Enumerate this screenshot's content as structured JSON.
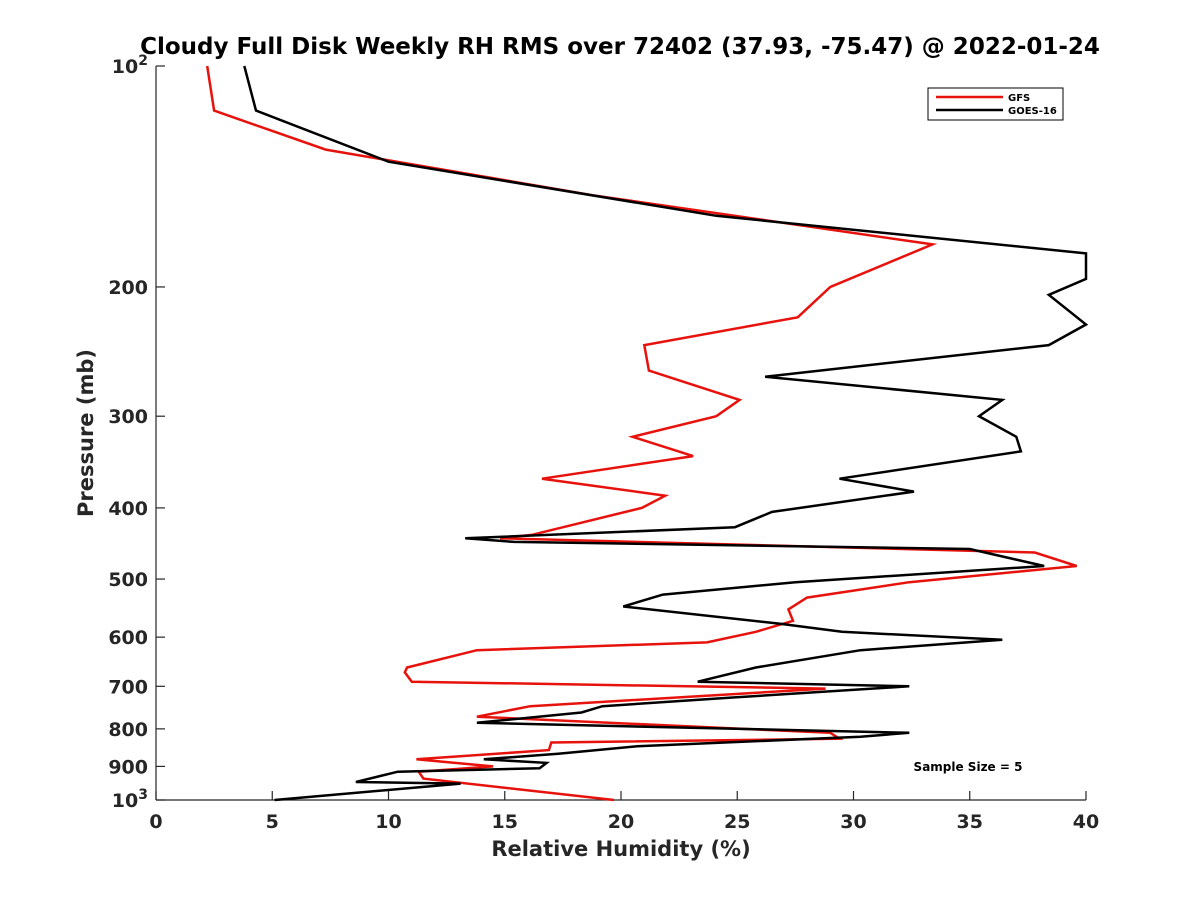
{
  "chart_data": {
    "type": "line",
    "title": "Cloudy Full Disk Weekly RH RMS over 72402 (37.93, -75.47) @ 2022-01-24",
    "xlabel": "Relative Humidity (%)",
    "ylabel": "Pressure (mb)",
    "xlim": [
      0,
      40
    ],
    "ylim": [
      100,
      1000
    ],
    "y_scale": "log",
    "y_reversed": true,
    "x_ticks": [
      0,
      5,
      10,
      15,
      20,
      25,
      30,
      35,
      40
    ],
    "x_tick_labels": [
      "0",
      "5",
      "10",
      "15",
      "20",
      "25",
      "30",
      "35",
      "40"
    ],
    "y_ticks": [
      100,
      200,
      300,
      400,
      500,
      600,
      700,
      800,
      900,
      1000
    ],
    "y_tick_labels": [
      {
        "base": "10",
        "exp": "2"
      },
      {
        "base": "200",
        "exp": ""
      },
      {
        "base": "300",
        "exp": ""
      },
      {
        "base": "400",
        "exp": ""
      },
      {
        "base": "500",
        "exp": ""
      },
      {
        "base": "600",
        "exp": ""
      },
      {
        "base": "700",
        "exp": ""
      },
      {
        "base": "800",
        "exp": ""
      },
      {
        "base": "900",
        "exp": ""
      },
      {
        "base": "10",
        "exp": "3"
      }
    ],
    "grid": false,
    "legend_position": "top-right",
    "annotation": "Sample Size = 5",
    "series": [
      {
        "name": "GFS",
        "color": "#e8120c",
        "points": [
          [
            2.2,
            100
          ],
          [
            2.5,
            115
          ],
          [
            7.3,
            130
          ],
          [
            18.8,
            150
          ],
          [
            33.4,
            175
          ],
          [
            29.0,
            200
          ],
          [
            27.6,
            220
          ],
          [
            21.0,
            240
          ],
          [
            21.2,
            260
          ],
          [
            25.1,
            285
          ],
          [
            24.1,
            300
          ],
          [
            20.5,
            320
          ],
          [
            23.1,
            340
          ],
          [
            16.6,
            365
          ],
          [
            21.9,
            385
          ],
          [
            20.9,
            400
          ],
          [
            16.2,
            435
          ],
          [
            14.8,
            440
          ],
          [
            37.8,
            460
          ],
          [
            39.6,
            480
          ],
          [
            32.4,
            505
          ],
          [
            28.0,
            530
          ],
          [
            27.2,
            550
          ],
          [
            27.4,
            570
          ],
          [
            25.8,
            590
          ],
          [
            23.7,
            610
          ],
          [
            13.8,
            625
          ],
          [
            10.8,
            660
          ],
          [
            10.7,
            670
          ],
          [
            11.0,
            690
          ],
          [
            28.8,
            705
          ],
          [
            16.1,
            745
          ],
          [
            13.8,
            770
          ],
          [
            29.0,
            810
          ],
          [
            29.4,
            825
          ],
          [
            17.0,
            835
          ],
          [
            16.9,
            855
          ],
          [
            11.2,
            880
          ],
          [
            14.5,
            900
          ],
          [
            11.3,
            915
          ],
          [
            11.5,
            935
          ],
          [
            19.7,
            1000
          ]
        ]
      },
      {
        "name": "GOES-16",
        "color": "#000000",
        "points": [
          [
            3.8,
            100
          ],
          [
            4.3,
            115
          ],
          [
            10.0,
            135
          ],
          [
            24.1,
            160
          ],
          [
            40.0,
            180
          ],
          [
            40.0,
            195
          ],
          [
            38.4,
            205
          ],
          [
            40.0,
            225
          ],
          [
            38.4,
            240
          ],
          [
            26.2,
            265
          ],
          [
            36.4,
            285
          ],
          [
            35.4,
            300
          ],
          [
            37.0,
            320
          ],
          [
            37.2,
            335
          ],
          [
            29.4,
            365
          ],
          [
            32.6,
            380
          ],
          [
            26.5,
            405
          ],
          [
            24.9,
            425
          ],
          [
            13.3,
            440
          ],
          [
            15.4,
            445
          ],
          [
            35.0,
            455
          ],
          [
            38.2,
            480
          ],
          [
            27.5,
            505
          ],
          [
            21.8,
            525
          ],
          [
            20.1,
            545
          ],
          [
            26.8,
            575
          ],
          [
            29.5,
            590
          ],
          [
            36.4,
            605
          ],
          [
            30.3,
            625
          ],
          [
            25.8,
            660
          ],
          [
            23.3,
            690
          ],
          [
            32.4,
            700
          ],
          [
            24.8,
            725
          ],
          [
            19.2,
            745
          ],
          [
            18.3,
            760
          ],
          [
            13.8,
            785
          ],
          [
            32.4,
            810
          ],
          [
            30.3,
            820
          ],
          [
            20.7,
            845
          ],
          [
            17.3,
            865
          ],
          [
            14.1,
            880
          ],
          [
            16.8,
            890
          ],
          [
            16.5,
            905
          ],
          [
            10.4,
            915
          ],
          [
            8.6,
            945
          ],
          [
            13.1,
            950
          ],
          [
            5.1,
            1000
          ]
        ]
      }
    ]
  }
}
